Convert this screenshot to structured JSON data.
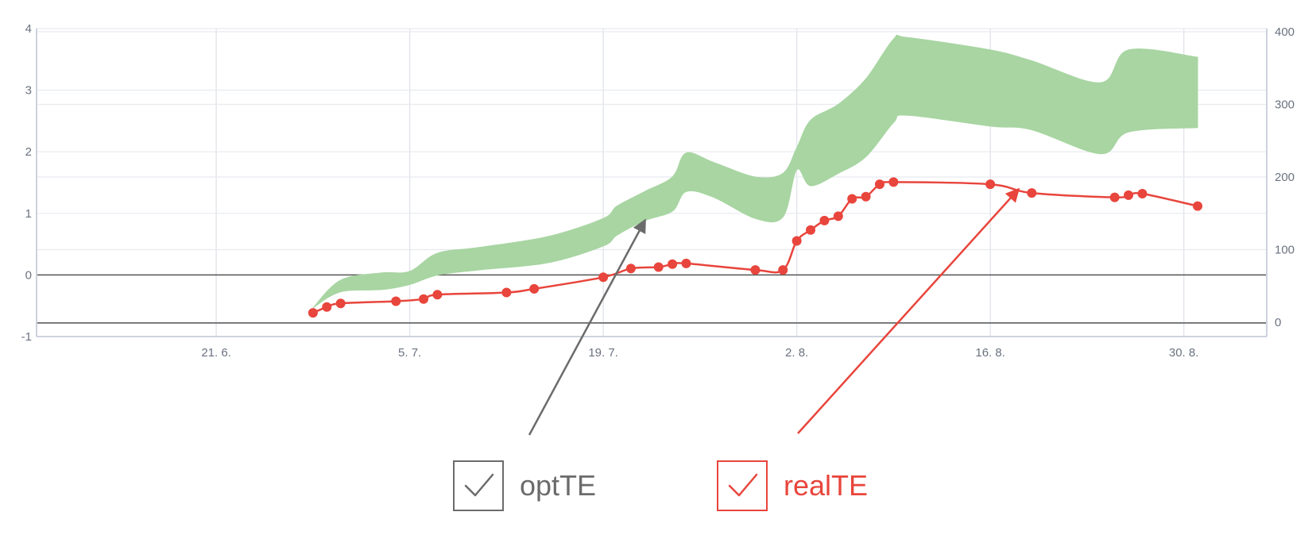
{
  "chart_data": {
    "type": "line",
    "x_axis": {
      "type": "date",
      "tick_labels": [
        "21. 6.",
        "5. 7.",
        "19. 7.",
        "2. 8.",
        "16. 8.",
        "30. 8."
      ],
      "ticks": [
        "2024-06-21",
        "2024-07-05",
        "2024-07-19",
        "2024-08-02",
        "2024-08-16",
        "2024-08-30"
      ],
      "range": [
        "2024-06-08",
        "2024-09-05"
      ]
    },
    "y_axis_left": {
      "range": [
        -1,
        4
      ],
      "tick_labels": [
        "-1",
        "0",
        "1",
        "2",
        "3",
        "4"
      ]
    },
    "y_axis_right": {
      "range": [
        0,
        400
      ],
      "tick_labels": [
        "0",
        "100",
        "200",
        "300",
        "400"
      ]
    },
    "reference_lines_left": [
      0,
      -0.78
    ],
    "grid": true,
    "series": [
      {
        "name": "optTE",
        "type": "arearange",
        "axis": "right",
        "color": "#a8d5a2",
        "data": [
          [
            "2024-06-28",
            20,
            20
          ],
          [
            "2024-06-30",
            42,
            58
          ],
          [
            "2024-07-03",
            45,
            68
          ],
          [
            "2024-07-05",
            52,
            70
          ],
          [
            "2024-07-07",
            65,
            95
          ],
          [
            "2024-07-10",
            72,
            103
          ],
          [
            "2024-07-15",
            82,
            118
          ],
          [
            "2024-07-19",
            105,
            143
          ],
          [
            "2024-07-20",
            120,
            160
          ],
          [
            "2024-07-22",
            140,
            180
          ],
          [
            "2024-07-24",
            153,
            200
          ],
          [
            "2024-07-25",
            180,
            233
          ],
          [
            "2024-07-27",
            172,
            220
          ],
          [
            "2024-07-30",
            143,
            200
          ],
          [
            "2024-08-01",
            145,
            205
          ],
          [
            "2024-08-02",
            210,
            240
          ],
          [
            "2024-08-03",
            188,
            278
          ],
          [
            "2024-08-05",
            205,
            300
          ],
          [
            "2024-08-07",
            228,
            335
          ],
          [
            "2024-08-09",
            275,
            390
          ],
          [
            "2024-08-10",
            285,
            392
          ],
          [
            "2024-08-16",
            270,
            375
          ],
          [
            "2024-08-19",
            265,
            360
          ],
          [
            "2024-08-24",
            232,
            330
          ],
          [
            "2024-08-26",
            262,
            375
          ],
          [
            "2024-08-31",
            268,
            365
          ]
        ]
      },
      {
        "name": "realTE",
        "type": "spline",
        "axis": "right",
        "color": "#e8453c",
        "data": [
          [
            "2024-06-28",
            13
          ],
          [
            "2024-06-29",
            21
          ],
          [
            "2024-06-30",
            26
          ],
          [
            "2024-07-04",
            29
          ],
          [
            "2024-07-06",
            32
          ],
          [
            "2024-07-07",
            38
          ],
          [
            "2024-07-12",
            41
          ],
          [
            "2024-07-14",
            46
          ],
          [
            "2024-07-19",
            62
          ],
          [
            "2024-07-21",
            74
          ],
          [
            "2024-07-23",
            76
          ],
          [
            "2024-07-24",
            80
          ],
          [
            "2024-07-25",
            81
          ],
          [
            "2024-07-30",
            72
          ],
          [
            "2024-08-01",
            72
          ],
          [
            "2024-08-02",
            112
          ],
          [
            "2024-08-03",
            127
          ],
          [
            "2024-08-04",
            140
          ],
          [
            "2024-08-05",
            146
          ],
          [
            "2024-08-06",
            170
          ],
          [
            "2024-08-07",
            173
          ],
          [
            "2024-08-08",
            190
          ],
          [
            "2024-08-09",
            193
          ],
          [
            "2024-08-16",
            190
          ],
          [
            "2024-08-19",
            178
          ],
          [
            "2024-08-25",
            172
          ],
          [
            "2024-08-26",
            175
          ],
          [
            "2024-08-27",
            177
          ],
          [
            "2024-08-31",
            160
          ]
        ]
      }
    ],
    "annotations": [
      {
        "kind": "arrow",
        "target_series": "optTE",
        "color": "#6b6b6b"
      },
      {
        "kind": "arrow",
        "target_series": "realTE",
        "color": "#e8453c"
      }
    ]
  },
  "legend": [
    {
      "label": "optTE",
      "checked": true,
      "color": "#6b6b6b"
    },
    {
      "label": "realTE",
      "checked": true,
      "color": "#e8453c"
    }
  ]
}
